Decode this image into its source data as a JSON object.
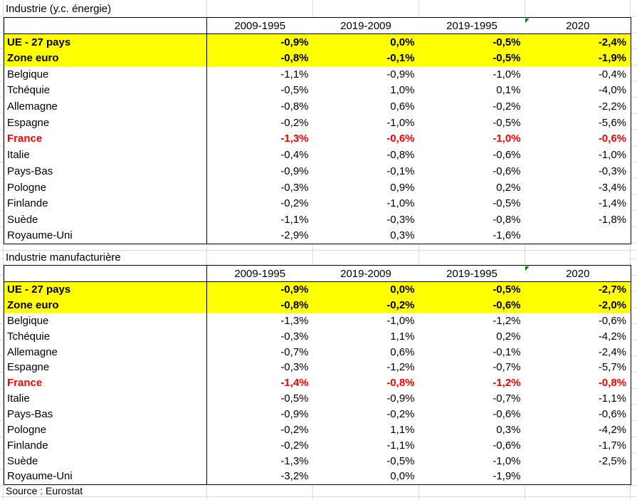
{
  "source_note": "Source : Eurostat",
  "colors": {
    "highlight_row": "#ffff00",
    "france_text": "#ff0000",
    "gridline": "#d9d9d9",
    "table_border": "#000000",
    "error_indicator_green": "#107c10"
  },
  "icons": {
    "error_indicator": "green-corner-triangle"
  },
  "chart_data": [
    {
      "type": "table",
      "title": "Industrie (y.c. énergie)",
      "columns": [
        "2009-1995",
        "2019-2009",
        "2019-1995",
        "2020"
      ],
      "rows": [
        {
          "label": "UE - 27 pays",
          "values": [
            "-0,9%",
            "0,0%",
            "-0,5%",
            "-2,4%"
          ],
          "style": "highlight"
        },
        {
          "label": "Zone euro",
          "values": [
            "-0,8%",
            "-0,1%",
            "-0,5%",
            "-1,9%"
          ],
          "style": "highlight"
        },
        {
          "label": "Belgique",
          "values": [
            "-1,1%",
            "-0,9%",
            "-1,0%",
            "-0,4%"
          ],
          "style": "normal"
        },
        {
          "label": "Tchéquie",
          "values": [
            "-0,5%",
            "1,0%",
            "0,1%",
            "-4,0%"
          ],
          "style": "normal"
        },
        {
          "label": "Allemagne",
          "values": [
            "-0,8%",
            "0,6%",
            "-0,2%",
            "-2,2%"
          ],
          "style": "normal"
        },
        {
          "label": "Espagne",
          "values": [
            "-0,2%",
            "-1,0%",
            "-0,5%",
            "-5,6%"
          ],
          "style": "normal"
        },
        {
          "label": "France",
          "values": [
            "-1,3%",
            "-0,6%",
            "-1,0%",
            "-0,6%"
          ],
          "style": "france"
        },
        {
          "label": "Italie",
          "values": [
            "-0,4%",
            "-0,8%",
            "-0,6%",
            "-1,0%"
          ],
          "style": "normal"
        },
        {
          "label": "Pays-Bas",
          "values": [
            "-0,9%",
            "-0,1%",
            "-0,6%",
            "-0,3%"
          ],
          "style": "normal"
        },
        {
          "label": "Pologne",
          "values": [
            "-0,3%",
            "0,9%",
            "0,2%",
            "-3,4%"
          ],
          "style": "normal"
        },
        {
          "label": "Finlande",
          "values": [
            "-0,2%",
            "-1,0%",
            "-0,5%",
            "-1,4%"
          ],
          "style": "normal"
        },
        {
          "label": "Suède",
          "values": [
            "-1,1%",
            "-0,3%",
            "-0,8%",
            "-1,8%"
          ],
          "style": "normal"
        },
        {
          "label": "Royaume-Uni",
          "values": [
            "-2,9%",
            "0,3%",
            "-1,6%",
            ""
          ],
          "style": "normal"
        }
      ]
    },
    {
      "type": "table",
      "title": "Industrie manufacturière",
      "columns": [
        "2009-1995",
        "2019-2009",
        "2019-1995",
        "2020"
      ],
      "rows": [
        {
          "label": "UE - 27 pays",
          "values": [
            "-0,9%",
            "0,0%",
            "-0,5%",
            "-2,7%"
          ],
          "style": "highlight"
        },
        {
          "label": "Zone euro",
          "values": [
            "-0,8%",
            "-0,2%",
            "-0,6%",
            "-2,0%"
          ],
          "style": "highlight"
        },
        {
          "label": "Belgique",
          "values": [
            "-1,3%",
            "-1,0%",
            "-1,2%",
            "-0,6%"
          ],
          "style": "normal"
        },
        {
          "label": "Tchéquie",
          "values": [
            "-0,3%",
            "1,1%",
            "0,2%",
            "-4,2%"
          ],
          "style": "normal"
        },
        {
          "label": "Allemagne",
          "values": [
            "-0,7%",
            "0,6%",
            "-0,1%",
            "-2,4%"
          ],
          "style": "normal"
        },
        {
          "label": "Espagne",
          "values": [
            "-0,3%",
            "-1,2%",
            "-0,7%",
            "-5,7%"
          ],
          "style": "normal"
        },
        {
          "label": "France",
          "values": [
            "-1,4%",
            "-0,8%",
            "-1,2%",
            "-0,8%"
          ],
          "style": "france"
        },
        {
          "label": "Italie",
          "values": [
            "-0,5%",
            "-0,9%",
            "-0,7%",
            "-1,1%"
          ],
          "style": "normal"
        },
        {
          "label": "Pays-Bas",
          "values": [
            "-0,9%",
            "-0,2%",
            "-0,6%",
            "-0,6%"
          ],
          "style": "normal"
        },
        {
          "label": "Pologne",
          "values": [
            "-0,2%",
            "1,1%",
            "0,3%",
            "-4,2%"
          ],
          "style": "normal"
        },
        {
          "label": "Finlande",
          "values": [
            "-0,2%",
            "-1,1%",
            "-0,6%",
            "-1,7%"
          ],
          "style": "normal"
        },
        {
          "label": "Suède",
          "values": [
            "-1,3%",
            "-0,5%",
            "-1,0%",
            "-2,5%"
          ],
          "style": "normal"
        },
        {
          "label": "Royaume-Uni",
          "values": [
            "-3,2%",
            "0,0%",
            "-1,9%",
            ""
          ],
          "style": "normal"
        }
      ]
    }
  ]
}
